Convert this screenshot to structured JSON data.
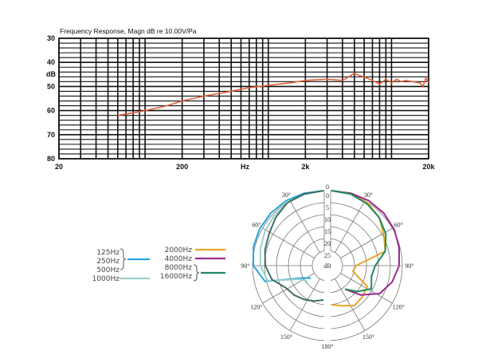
{
  "chart_data": [
    {
      "type": "line",
      "title": "Frequency Response, Magn dB re 10.00V/Pa",
      "xlabel": "Hz",
      "ylabel": "dB",
      "xscale": "log",
      "xlim": [
        20,
        20000
      ],
      "ylim": [
        80,
        30
      ],
      "y_inverted": true,
      "grid": true,
      "xticks": [
        "20",
        "200",
        "2k",
        "20k"
      ],
      "yticks": [
        "30",
        "40",
        "50",
        "60",
        "70",
        "80"
      ],
      "series": [
        {
          "color": "#e0623a",
          "x": [
            60,
            80,
            100,
            150,
            200,
            300,
            500,
            700,
            1000,
            1500,
            2000,
            3000,
            4000,
            4500,
            5000,
            5500,
            6000,
            7000,
            8000,
            9000,
            10000,
            11000,
            12000,
            13000,
            15000,
            17000,
            18000,
            19000,
            20000
          ],
          "y": [
            62,
            61,
            60,
            58,
            56,
            54,
            52,
            50.5,
            49.5,
            48.5,
            47.5,
            47,
            47.5,
            46,
            44.5,
            45.5,
            46,
            47.5,
            49,
            47,
            48.5,
            47,
            48,
            47.5,
            48,
            48.5,
            50,
            46.5,
            48.5
          ]
        }
      ]
    },
    {
      "type": "polar",
      "radial_label": "dB",
      "radial_ticks": [
        "0",
        "5",
        "10",
        "15",
        "20",
        "25"
      ],
      "angle_ticks_left": [
        "30°",
        "60°",
        "90°",
        "120°",
        "150°"
      ],
      "angle_ticks_right": [
        "30°",
        "60°",
        "90°",
        "120°",
        "150°"
      ],
      "angle_top": "0",
      "angle_bottom": "180°",
      "legend": {
        "left": {
          "labels": [
            "125Hz",
            "250Hz",
            "500Hz",
            "1000Hz"
          ]
        },
        "right": {
          "labels": [
            "2000Hz",
            "4000Hz",
            "8000Hz",
            "16000Hz"
          ]
        }
      },
      "angles": [
        0,
        15,
        30,
        45,
        60,
        75,
        90,
        105,
        120,
        135,
        150,
        165,
        180
      ],
      "series": [
        {
          "name": "125Hz / 250Hz",
          "side": "left",
          "color": "#2aa6d6",
          "attenuation_db": [
            0,
            0,
            0,
            0.2,
            0.5,
            1,
            2,
            6,
            21,
            24,
            null,
            null,
            null
          ]
        },
        {
          "name": "1000Hz",
          "side": "left",
          "color": "#9ccfcf",
          "attenuation_db": [
            0,
            0.5,
            1,
            2,
            3,
            4,
            5,
            7,
            20,
            22,
            null,
            null,
            null
          ]
        },
        {
          "name": "500Hz",
          "side": "left",
          "color": "#3f6f5f",
          "attenuation_db": [
            0,
            0.3,
            1,
            3,
            5,
            6,
            7,
            9,
            13,
            14,
            15,
            16,
            17
          ]
        },
        {
          "name": "2000Hz",
          "side": "right",
          "color": "#e8a428",
          "attenuation_db": [
            0,
            0.3,
            1,
            3,
            6,
            8,
            21,
            22,
            14,
            13,
            12,
            14,
            15
          ]
        },
        {
          "name": "4000Hz",
          "side": "right",
          "color": "#9a2b8c",
          "attenuation_db": [
            0,
            0,
            0,
            0.3,
            1,
            2,
            3,
            5,
            8,
            14,
            20,
            null,
            null
          ]
        },
        {
          "name": "8000Hz / 16000Hz",
          "side": "right",
          "color": "#1f8a62",
          "attenuation_db": [
            0,
            0.3,
            1.5,
            3,
            5,
            8,
            13,
            14,
            12,
            16,
            20,
            null,
            null
          ]
        }
      ]
    }
  ]
}
